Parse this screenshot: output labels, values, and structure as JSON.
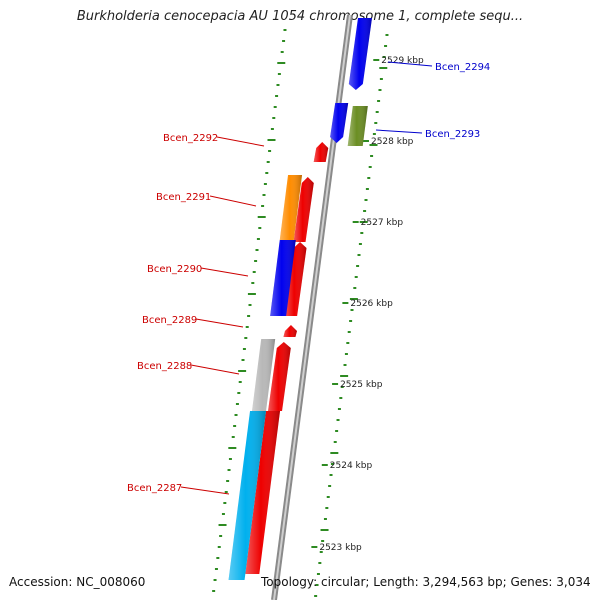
{
  "title": "Burkholderia cenocepacia AU 1054 chromosome 1, complete sequ...",
  "footer": {
    "accession": "Accession: NC_008060",
    "summary": "Topology: circular; Length: 3,294,563 bp; Genes: 3,034"
  },
  "colors": {
    "backbone": "#8a8a8a",
    "tick": "#2e8b22",
    "left_label": "#cc0000",
    "right_label": "#0000cc",
    "kbp_label": "#222222"
  },
  "kbp_labels": [
    "2529 kbp",
    "2528 kbp",
    "2527 kbp",
    "2526 kbp",
    "2525 kbp",
    "2524 kbp",
    "2523 kbp"
  ],
  "genes": [
    {
      "name": "Bcen_2294",
      "side": "right",
      "color": "#0000cc"
    },
    {
      "name": "Bcen_2293",
      "side": "right",
      "color": "#0000cc"
    },
    {
      "name": "Bcen_2292",
      "side": "left",
      "color": "#cc0000"
    },
    {
      "name": "Bcen_2291",
      "side": "left",
      "color": "#cc0000"
    },
    {
      "name": "Bcen_2290",
      "side": "left",
      "color": "#cc0000"
    },
    {
      "name": "Bcen_2289",
      "side": "left",
      "color": "#cc0000"
    },
    {
      "name": "Bcen_2288",
      "side": "left",
      "color": "#cc0000"
    },
    {
      "name": "Bcen_2287",
      "side": "left",
      "color": "#cc0000"
    }
  ],
  "features": [
    {
      "name": "Bcen_2294 product",
      "color": "#0000ee"
    },
    {
      "name": "Bcen_2293 product (blue)",
      "color": "#0000ee"
    },
    {
      "name": "Bcen_2293 product (green)",
      "color": "#6b8e23"
    },
    {
      "name": "Bcen_2292 gene",
      "color": "#ee0000"
    },
    {
      "name": "Bcen_2291 gene",
      "color": "#ee0000"
    },
    {
      "name": "Bcen_2291 product",
      "color": "#ff8c00"
    },
    {
      "name": "Bcen_2290 gene",
      "color": "#ee0000"
    },
    {
      "name": "Bcen_2290 product",
      "color": "#0000ee"
    },
    {
      "name": "Bcen_2289 gene",
      "color": "#ee0000"
    },
    {
      "name": "Bcen_2288 gene",
      "color": "#ee0000"
    },
    {
      "name": "Bcen_2288 product",
      "color": "#b8b8b8"
    },
    {
      "name": "Bcen_2287 gene",
      "color": "#ee0000"
    },
    {
      "name": "Bcen_2287 product",
      "color": "#00b0ee"
    }
  ]
}
